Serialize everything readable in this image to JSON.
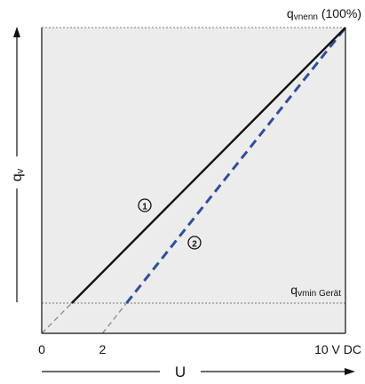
{
  "chart_data": {
    "type": "line",
    "top_label": {
      "main": "q",
      "sub": "vnenn",
      "suffix": " (100%)"
    },
    "bottom_label": {
      "main": "q",
      "sub": "vmin Gerät"
    },
    "xlabel": "U",
    "ylabel": {
      "main": "q",
      "sub": "v"
    },
    "x_ticks": [
      "0",
      "2",
      "10 V DC"
    ],
    "x_tick_values": [
      0,
      2,
      10
    ],
    "xlim": [
      0,
      10
    ],
    "ylim": [
      0,
      100
    ],
    "min_flow_percent": 10,
    "grid": false,
    "series": [
      {
        "marker": "①",
        "style": "solid",
        "color": "#111111",
        "points": [
          [
            0,
            0
          ],
          [
            10,
            100
          ]
        ],
        "drawn_from_x": 1
      },
      {
        "marker": "②",
        "style": "dashed",
        "color": "#2e4f9a",
        "points": [
          [
            2,
            0
          ],
          [
            10,
            100
          ]
        ],
        "drawn_from_x": 2.8
      }
    ],
    "colors": {
      "plot_bg": "#ececec",
      "guide": "#888888",
      "blue": "#2e4f9a"
    }
  }
}
